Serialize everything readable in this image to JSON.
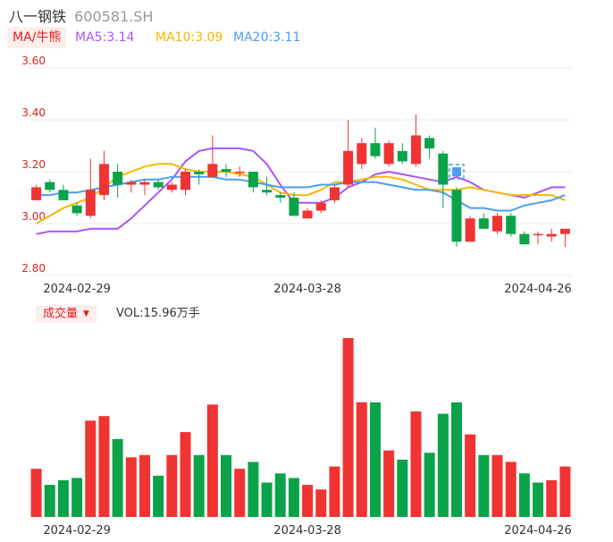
{
  "header": {
    "name": "八一钢铁",
    "code": "600581.SH"
  },
  "ma_bar": {
    "toggle_label": "MA/牛熊",
    "ma5": "MA5:3.14",
    "ma10": "MA10:3.09",
    "ma20": "MA20:3.11",
    "colors": {
      "ma5": "#a855f7",
      "ma10": "#f5b800",
      "ma20": "#4a9ef0"
    }
  },
  "volume_bar": {
    "toggle_label": "成交量",
    "text": "VOL:15.96万手"
  },
  "colors": {
    "up": "#f03333",
    "down": "#0aa34a",
    "axis_label": "#e02020",
    "grid": "#ebebeb"
  },
  "chart_data": [
    {
      "type": "candlestick",
      "title": "",
      "y_ticks": [
        "3.60",
        "3.40",
        "3.20",
        "3.00",
        "2.80"
      ],
      "ylim": [
        2.8,
        3.6
      ],
      "x_tick_labels": [
        "2024-02-29",
        "2024-03-28",
        "2024-04-26"
      ],
      "grid": true,
      "candles": [
        {
          "o": 3.09,
          "c": 3.14,
          "h": 3.15,
          "l": 3.09
        },
        {
          "o": 3.16,
          "c": 3.13,
          "h": 3.17,
          "l": 3.12
        },
        {
          "o": 3.13,
          "c": 3.09,
          "h": 3.15,
          "l": 3.09
        },
        {
          "o": 3.07,
          "c": 3.04,
          "h": 3.08,
          "l": 3.03
        },
        {
          "o": 3.03,
          "c": 3.13,
          "h": 3.25,
          "l": 3.02
        },
        {
          "o": 3.11,
          "c": 3.23,
          "h": 3.28,
          "l": 3.09
        },
        {
          "o": 3.2,
          "c": 3.15,
          "h": 3.23,
          "l": 3.1
        },
        {
          "o": 3.15,
          "c": 3.16,
          "h": 3.17,
          "l": 3.12
        },
        {
          "o": 3.15,
          "c": 3.16,
          "h": 3.17,
          "l": 3.11
        },
        {
          "o": 3.16,
          "c": 3.14,
          "h": 3.17,
          "l": 3.13
        },
        {
          "o": 3.13,
          "c": 3.15,
          "h": 3.16,
          "l": 3.12
        },
        {
          "o": 3.13,
          "c": 3.2,
          "h": 3.21,
          "l": 3.11
        },
        {
          "o": 3.2,
          "c": 3.19,
          "h": 3.21,
          "l": 3.15
        },
        {
          "o": 3.18,
          "c": 3.23,
          "h": 3.34,
          "l": 3.18
        },
        {
          "o": 3.21,
          "c": 3.2,
          "h": 3.23,
          "l": 3.18
        },
        {
          "o": 3.2,
          "c": 3.2,
          "h": 3.22,
          "l": 3.18
        },
        {
          "o": 3.2,
          "c": 3.14,
          "h": 3.2,
          "l": 3.12
        },
        {
          "o": 3.13,
          "c": 3.12,
          "h": 3.18,
          "l": 3.11
        },
        {
          "o": 3.11,
          "c": 3.1,
          "h": 3.12,
          "l": 3.08
        },
        {
          "o": 3.1,
          "c": 3.03,
          "h": 3.12,
          "l": 3.03
        },
        {
          "o": 3.02,
          "c": 3.05,
          "h": 3.06,
          "l": 3.02
        },
        {
          "o": 3.05,
          "c": 3.08,
          "h": 3.09,
          "l": 3.04
        },
        {
          "o": 3.09,
          "c": 3.14,
          "h": 3.15,
          "l": 3.08
        },
        {
          "o": 3.15,
          "c": 3.28,
          "h": 3.4,
          "l": 3.14
        },
        {
          "o": 3.23,
          "c": 3.31,
          "h": 3.33,
          "l": 3.21
        },
        {
          "o": 3.31,
          "c": 3.26,
          "h": 3.37,
          "l": 3.25
        },
        {
          "o": 3.23,
          "c": 3.31,
          "h": 3.32,
          "l": 3.22
        },
        {
          "o": 3.28,
          "c": 3.24,
          "h": 3.31,
          "l": 3.23
        },
        {
          "o": 3.23,
          "c": 3.34,
          "h": 3.42,
          "l": 3.22
        },
        {
          "o": 3.33,
          "c": 3.29,
          "h": 3.34,
          "l": 3.25
        },
        {
          "o": 3.27,
          "c": 3.15,
          "h": 3.28,
          "l": 3.06
        },
        {
          "o": 3.13,
          "c": 2.93,
          "h": 3.14,
          "l": 2.91
        },
        {
          "o": 2.93,
          "c": 3.02,
          "h": 3.03,
          "l": 2.93
        },
        {
          "o": 3.02,
          "c": 2.98,
          "h": 3.04,
          "l": 2.98
        },
        {
          "o": 2.97,
          "c": 3.03,
          "h": 3.04,
          "l": 2.96
        },
        {
          "o": 3.03,
          "c": 2.96,
          "h": 3.04,
          "l": 2.95
        },
        {
          "o": 2.96,
          "c": 2.92,
          "h": 2.97,
          "l": 2.92
        },
        {
          "o": 2.96,
          "c": 2.96,
          "h": 2.97,
          "l": 2.92
        },
        {
          "o": 2.95,
          "c": 2.96,
          "h": 2.98,
          "l": 2.93
        },
        {
          "o": 2.96,
          "c": 2.98,
          "h": 2.98,
          "l": 2.91
        }
      ],
      "ma_series": [
        {
          "name": "MA5",
          "values": [
            2.96,
            2.97,
            2.97,
            2.97,
            2.98,
            2.98,
            2.98,
            3.02,
            3.07,
            3.12,
            3.17,
            3.24,
            3.28,
            3.29,
            3.29,
            3.29,
            3.28,
            3.23,
            3.15,
            3.08,
            3.08,
            3.08,
            3.1,
            3.14,
            3.16,
            3.19,
            3.2,
            3.19,
            3.18,
            3.17,
            3.16,
            3.18,
            3.16,
            3.13,
            3.12,
            3.11,
            3.1,
            3.12,
            3.14,
            3.14
          ]
        },
        {
          "name": "MA10",
          "values": [
            3.0,
            3.03,
            3.06,
            3.08,
            3.1,
            3.14,
            3.18,
            3.2,
            3.22,
            3.23,
            3.23,
            3.21,
            3.2,
            3.2,
            3.2,
            3.19,
            3.18,
            3.15,
            3.12,
            3.11,
            3.11,
            3.13,
            3.16,
            3.16,
            3.17,
            3.18,
            3.18,
            3.17,
            3.15,
            3.13,
            3.13,
            3.13,
            3.14,
            3.13,
            3.12,
            3.11,
            3.11,
            3.11,
            3.11,
            3.09
          ]
        },
        {
          "name": "MA20",
          "values": [
            3.11,
            3.11,
            3.12,
            3.12,
            3.13,
            3.14,
            3.15,
            3.16,
            3.17,
            3.17,
            3.18,
            3.18,
            3.18,
            3.18,
            3.17,
            3.17,
            3.16,
            3.15,
            3.14,
            3.14,
            3.14,
            3.15,
            3.15,
            3.16,
            3.16,
            3.16,
            3.15,
            3.14,
            3.13,
            3.13,
            3.12,
            3.09,
            3.06,
            3.06,
            3.05,
            3.05,
            3.07,
            3.08,
            3.09,
            3.11
          ]
        }
      ]
    },
    {
      "type": "bar",
      "title": "",
      "ylabel": "",
      "x_tick_labels": [
        "2024-02-29",
        "2024-03-28",
        "2024-04-26"
      ],
      "values": [
        21,
        14,
        16,
        17,
        42,
        44,
        34,
        26,
        27,
        18,
        27,
        37,
        27,
        49,
        27,
        21,
        24,
        15,
        19,
        17,
        14,
        12,
        22,
        78,
        50,
        50,
        29,
        25,
        46,
        28,
        45,
        50,
        36,
        27,
        27,
        24,
        19,
        15,
        16,
        22
      ],
      "direction": [
        "up",
        "down",
        "down",
        "down",
        "up",
        "up",
        "down",
        "up",
        "up",
        "down",
        "up",
        "up",
        "down",
        "up",
        "down",
        "up",
        "down",
        "down",
        "down",
        "down",
        "up",
        "up",
        "up",
        "up",
        "up",
        "down",
        "up",
        "down",
        "up",
        "down",
        "down",
        "down",
        "up",
        "down",
        "up",
        "up",
        "down",
        "down",
        "up",
        "up"
      ]
    }
  ]
}
